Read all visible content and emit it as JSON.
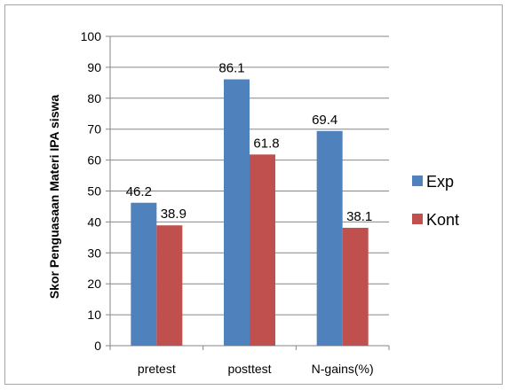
{
  "chart_data": {
    "type": "bar",
    "title": "",
    "xlabel": "",
    "ylabel": "Skor Penguasaan Materi IPA siswa",
    "ylim": [
      0,
      100
    ],
    "yticks": [
      0,
      10,
      20,
      30,
      40,
      50,
      60,
      70,
      80,
      90,
      100
    ],
    "categories": [
      "pretest",
      "posttest",
      "N-gains(%)"
    ],
    "series": [
      {
        "name": "Exp",
        "values": [
          46.2,
          86.1,
          69.4
        ],
        "color": "#4F81BD"
      },
      {
        "name": "Kont",
        "values": [
          38.9,
          61.8,
          38.1
        ],
        "color": "#C0504D"
      }
    ],
    "data_labels": [
      [
        "46.2",
        "86.1",
        "69.4"
      ],
      [
        "38.9",
        "61.8",
        "38.1"
      ]
    ],
    "grid": true,
    "legend_position": "right"
  }
}
